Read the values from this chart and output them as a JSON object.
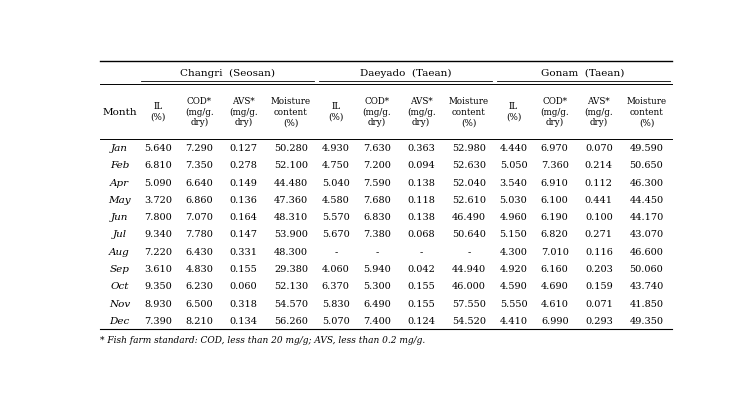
{
  "groups": [
    "Changri  (Seosan)",
    "Daeyado  (Taean)",
    "Gonam  (Taean)"
  ],
  "months": [
    "Jan",
    "Feb",
    "Apr",
    "May",
    "Jun",
    "Jul",
    "Aug",
    "Sep",
    "Oct",
    "Nov",
    "Dec"
  ],
  "col_headers": [
    "IL\n(%)",
    "COD*\n(mg/g.\ndry)",
    "AVS*\n(mg/g.\ndry)",
    "Moisture\ncontent\n(%)"
  ],
  "data_changri": [
    [
      5.64,
      7.29,
      0.127,
      50.28
    ],
    [
      6.81,
      7.35,
      0.278,
      52.1
    ],
    [
      5.09,
      6.64,
      0.149,
      44.48
    ],
    [
      3.72,
      6.86,
      0.136,
      47.36
    ],
    [
      7.8,
      7.07,
      0.164,
      48.31
    ],
    [
      9.34,
      7.78,
      0.147,
      53.9
    ],
    [
      7.22,
      6.43,
      0.331,
      48.3
    ],
    [
      3.61,
      4.83,
      0.155,
      29.38
    ],
    [
      9.35,
      6.23,
      0.06,
      52.13
    ],
    [
      8.93,
      6.5,
      0.318,
      54.57
    ],
    [
      7.39,
      8.21,
      0.134,
      56.26
    ]
  ],
  "data_daeyado": [
    [
      4.93,
      7.63,
      0.363,
      52.98
    ],
    [
      4.75,
      7.2,
      0.094,
      52.63
    ],
    [
      5.04,
      7.59,
      0.138,
      52.04
    ],
    [
      4.58,
      7.68,
      0.118,
      52.61
    ],
    [
      5.57,
      6.83,
      0.138,
      46.49
    ],
    [
      5.67,
      7.38,
      0.068,
      50.64
    ],
    [
      "-",
      "-",
      "-",
      "-"
    ],
    [
      4.06,
      5.94,
      0.042,
      44.94
    ],
    [
      6.37,
      5.3,
      0.155,
      46.0
    ],
    [
      5.83,
      6.49,
      0.155,
      57.55
    ],
    [
      5.07,
      7.4,
      0.124,
      54.52
    ]
  ],
  "data_gonam": [
    [
      4.44,
      6.97,
      0.07,
      49.59
    ],
    [
      5.05,
      7.36,
      0.214,
      50.65
    ],
    [
      3.54,
      6.91,
      0.112,
      46.3
    ],
    [
      5.03,
      6.1,
      0.441,
      44.45
    ],
    [
      4.96,
      6.19,
      0.1,
      44.17
    ],
    [
      5.15,
      6.82,
      0.271,
      43.07
    ],
    [
      4.3,
      7.01,
      0.116,
      46.6
    ],
    [
      4.92,
      6.16,
      0.203,
      50.06
    ],
    [
      4.59,
      4.69,
      0.159,
      43.74
    ],
    [
      5.55,
      4.61,
      0.071,
      41.85
    ],
    [
      4.41,
      6.99,
      0.293,
      49.35
    ]
  ],
  "footnote": "* Fish farm standard: COD, less than 20 mg/g; AVS, less than 0.2 mg/g.",
  "background_color": "#ffffff",
  "text_color": "#000000"
}
